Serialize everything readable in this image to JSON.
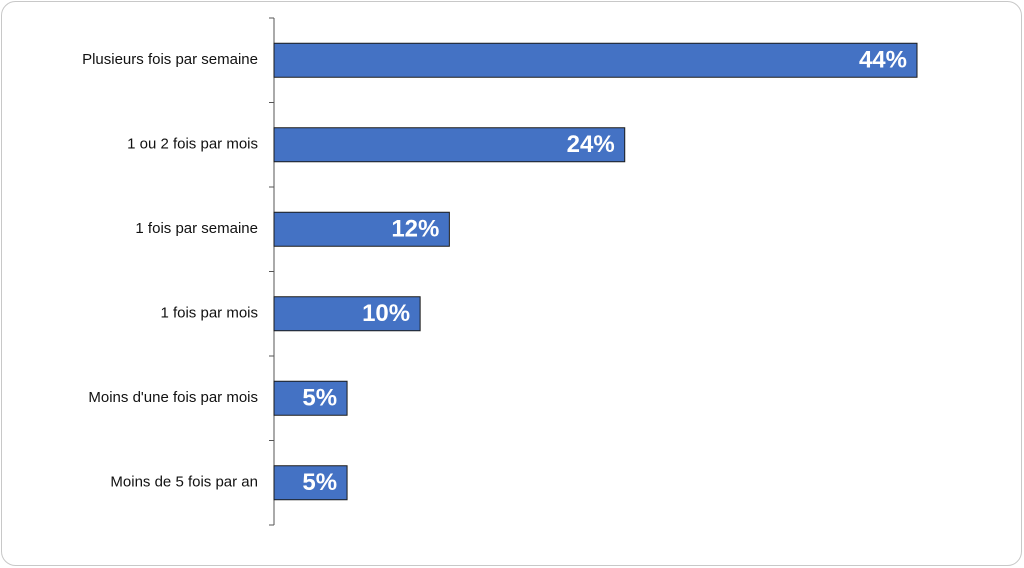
{
  "chart_data": {
    "type": "bar",
    "orientation": "horizontal",
    "categories": [
      "Plusieurs fois par semaine",
      "1 ou 2 fois par mois",
      "1 fois par semaine",
      "1 fois par mois",
      "Moins d'une fois par mois",
      "Moins de 5 fois par an"
    ],
    "values": [
      44,
      24,
      12,
      10,
      5,
      5
    ],
    "value_labels": [
      "44%",
      "24%",
      "12%",
      "10%",
      "5%",
      "5%"
    ],
    "color": "#4472c4"
  }
}
